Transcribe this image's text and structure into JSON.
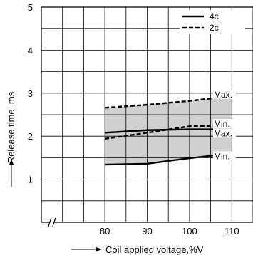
{
  "chart_data": {
    "type": "line",
    "title": "",
    "xlabel": "Coil applied voltage,%V",
    "ylabel": "Release time, ms",
    "x": [
      80,
      90,
      100,
      110
    ],
    "xlim": [
      65,
      115
    ],
    "ylim": [
      0,
      5
    ],
    "x_ticks": [
      "80",
      "90",
      "100",
      "110"
    ],
    "y_ticks": [
      "1",
      "2",
      "3",
      "4",
      "5"
    ],
    "grid": true,
    "legend_position": "top-right",
    "axis_break": "x",
    "legend": [
      {
        "label": "4c",
        "style": "solid"
      },
      {
        "label": "2c",
        "style": "dashed"
      }
    ],
    "series": [
      {
        "name": "4c",
        "bound": "Max.",
        "style": "solid",
        "values": [
          2.08,
          2.14,
          2.16,
          2.16
        ]
      },
      {
        "name": "4c",
        "bound": "Min.",
        "style": "solid",
        "values": [
          1.34,
          1.36,
          1.49,
          1.6
        ]
      },
      {
        "name": "2c",
        "bound": "Max.",
        "style": "dashed",
        "values": [
          2.66,
          2.73,
          2.82,
          2.93
        ]
      },
      {
        "name": "2c",
        "bound": "Min.",
        "style": "dashed",
        "values": [
          1.94,
          2.08,
          2.23,
          2.24
        ]
      }
    ],
    "shaded_band": {
      "upper": "2c Max.",
      "lower": "4c Min.",
      "color": "#d0d0d0"
    },
    "annotations": [
      {
        "text": "Max.",
        "y": 2.93
      },
      {
        "text": "Min.",
        "y": 2.25
      },
      {
        "text": "Max.",
        "y": 2.03
      },
      {
        "text": "Min.",
        "y": 1.5
      }
    ]
  }
}
